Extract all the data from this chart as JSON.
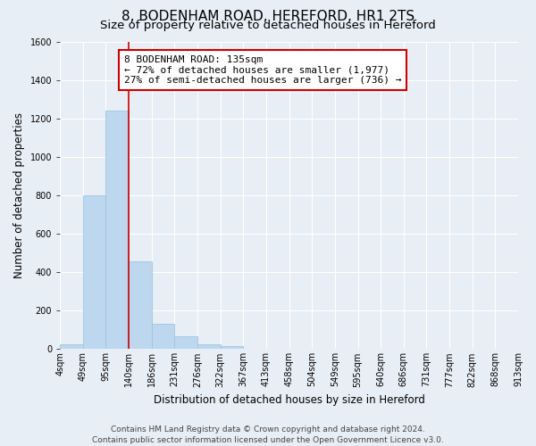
{
  "title": "8, BODENHAM ROAD, HEREFORD, HR1 2TS",
  "subtitle": "Size of property relative to detached houses in Hereford",
  "xlabel": "Distribution of detached houses by size in Hereford",
  "ylabel": "Number of detached properties",
  "bar_values": [
    25,
    800,
    1240,
    455,
    130,
    65,
    25,
    15,
    0,
    0,
    0,
    0,
    0,
    0,
    0,
    0,
    0,
    0,
    0,
    0
  ],
  "bin_labels": [
    "4sqm",
    "49sqm",
    "95sqm",
    "140sqm",
    "186sqm",
    "231sqm",
    "276sqm",
    "322sqm",
    "367sqm",
    "413sqm",
    "458sqm",
    "504sqm",
    "549sqm",
    "595sqm",
    "640sqm",
    "686sqm",
    "731sqm",
    "777sqm",
    "822sqm",
    "868sqm",
    "913sqm"
  ],
  "bar_color": "#bdd7ee",
  "bar_edge_color": "#9ec6e0",
  "ref_line_color": "#cc0000",
  "ref_line_bin_index": 2,
  "annotation_line1": "8 BODENHAM ROAD: 135sqm",
  "annotation_line2": "← 72% of detached houses are smaller (1,977)",
  "annotation_line3": "27% of semi-detached houses are larger (736) →",
  "ylim": [
    0,
    1600
  ],
  "yticks": [
    0,
    200,
    400,
    600,
    800,
    1000,
    1200,
    1400,
    1600
  ],
  "footer_line1": "Contains HM Land Registry data © Crown copyright and database right 2024.",
  "footer_line2": "Contains public sector information licensed under the Open Government Licence v3.0.",
  "background_color": "#e8eef5",
  "plot_bg_color": "#e8eef5",
  "grid_color": "#ffffff",
  "title_fontsize": 11,
  "subtitle_fontsize": 9.5,
  "axis_label_fontsize": 8.5,
  "tick_fontsize": 7,
  "annotation_fontsize": 8,
  "footer_fontsize": 6.5
}
